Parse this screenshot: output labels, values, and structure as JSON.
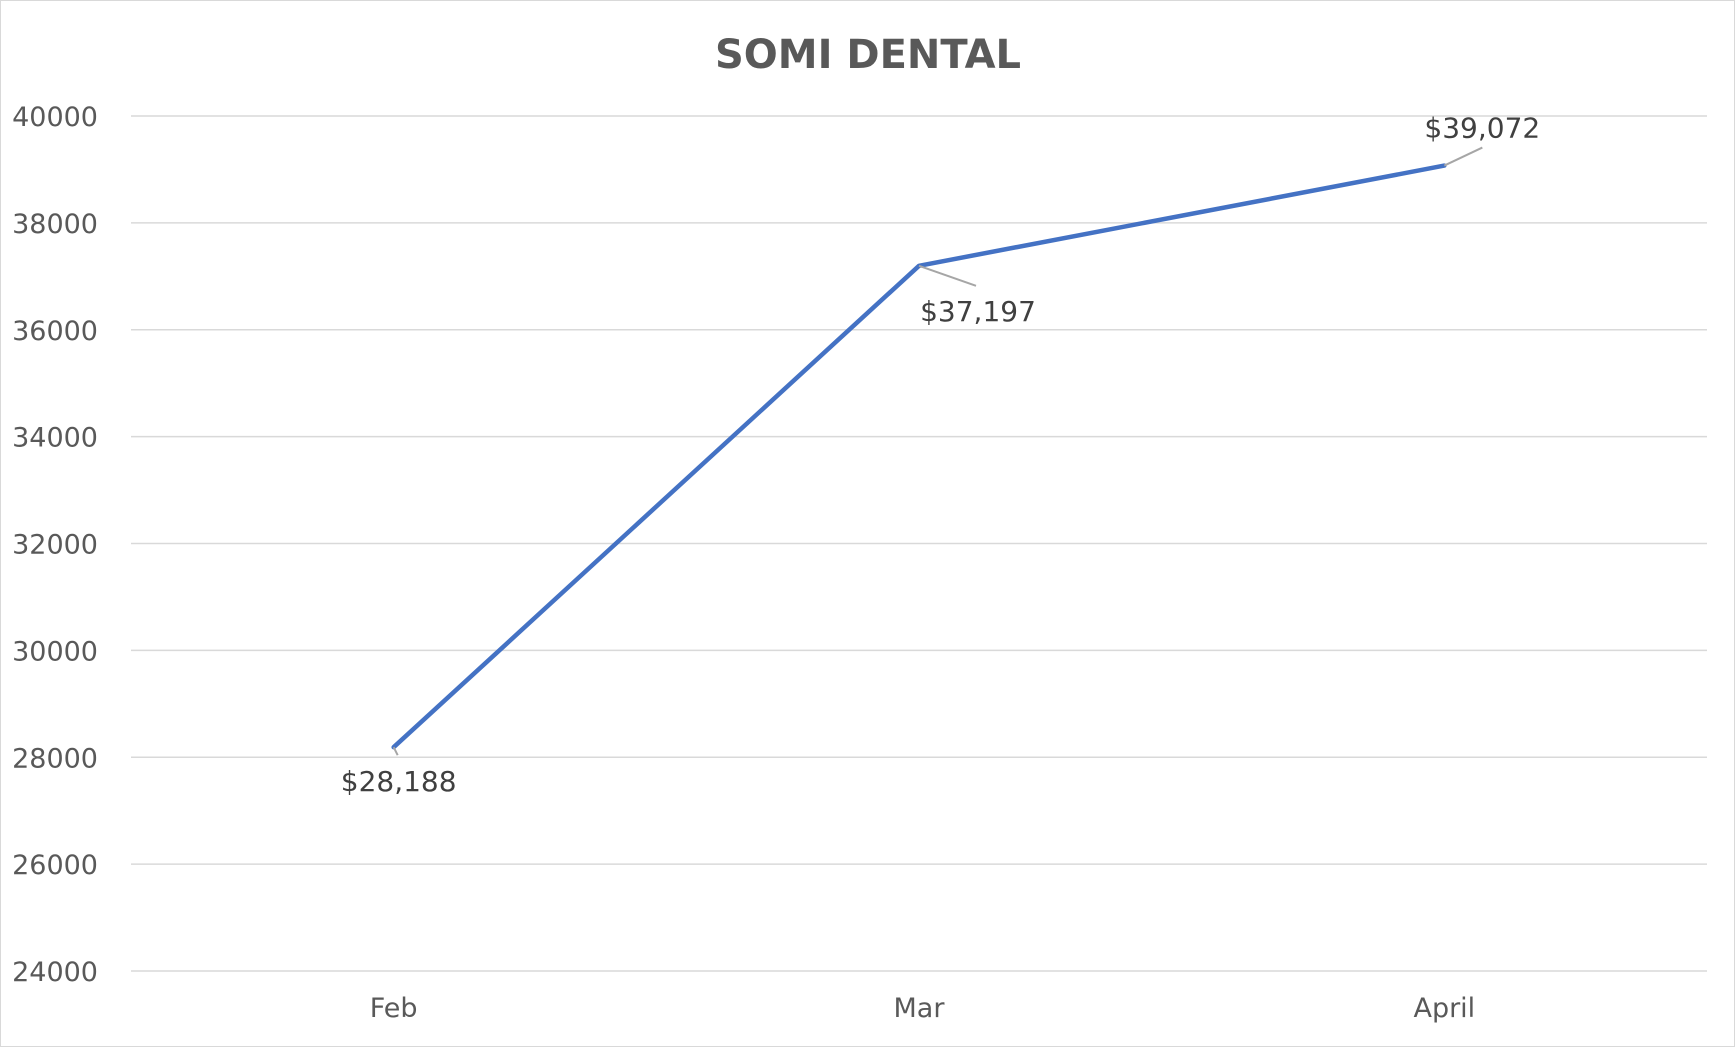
{
  "chart_data": {
    "type": "line",
    "title": "SOMI DENTAL",
    "xlabel": "",
    "ylabel": "",
    "categories": [
      "Feb",
      "Mar",
      "April"
    ],
    "series": [
      {
        "values": [
          28188,
          37197,
          39072
        ],
        "data_labels": [
          "$28,188",
          "$37,197",
          "$39,072"
        ],
        "color": "#4472C4"
      }
    ],
    "ylim": [
      24000,
      40000
    ],
    "yticks": [
      "24000",
      "26000",
      "28000",
      "30000",
      "32000",
      "34000",
      "36000",
      "38000",
      "40000"
    ],
    "grid": true,
    "legend": "none"
  },
  "colors": {
    "line": "#4472C4",
    "gridline": "#d9d9d9",
    "text": "#595959"
  }
}
